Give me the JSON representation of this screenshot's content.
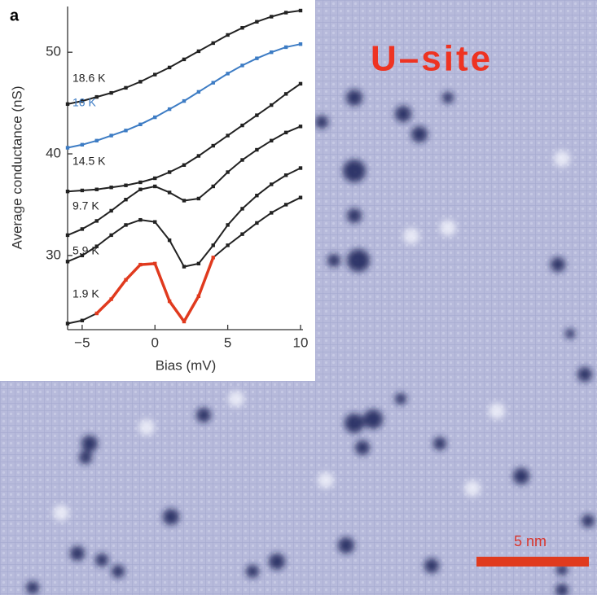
{
  "chart_data": {
    "type": "line",
    "panel_label": "a",
    "annotation": "U–site",
    "scale_bar": "5 nm",
    "xlabel": "Bias (mV)",
    "ylabel": "Average conductance (nS)",
    "x": [
      -6,
      -5,
      -4,
      -3,
      -2,
      -1,
      0,
      1,
      2,
      3,
      4,
      5,
      6,
      7,
      8,
      9,
      10
    ],
    "xlim": [
      -6,
      10
    ],
    "xticks": [
      {
        "value": -5,
        "label": "−5"
      },
      0,
      5,
      10
    ],
    "ylim": [
      22.7,
      54.5
    ],
    "yticks": [
      30,
      40,
      50
    ],
    "series": [
      {
        "name": "18.6 K",
        "color": "#222222",
        "values": [
          44.9,
          45.2,
          45.6,
          46.0,
          46.5,
          47.1,
          47.8,
          48.5,
          49.3,
          50.1,
          50.9,
          51.7,
          52.4,
          53.0,
          53.5,
          53.9,
          54.1
        ]
      },
      {
        "name": "16 K",
        "color": "#3d7cc4",
        "values": [
          40.6,
          40.9,
          41.3,
          41.8,
          42.3,
          42.9,
          43.6,
          44.4,
          45.2,
          46.1,
          47.0,
          47.9,
          48.7,
          49.4,
          50.0,
          50.5,
          50.8
        ]
      },
      {
        "name": "14.5 K",
        "color": "#222222",
        "values": [
          36.3,
          36.4,
          36.5,
          36.7,
          36.9,
          37.2,
          37.6,
          38.2,
          38.9,
          39.8,
          40.8,
          41.8,
          42.8,
          43.8,
          44.8,
          45.9,
          46.9
        ]
      },
      {
        "name": "9.7 K",
        "color": "#222222",
        "values": [
          32.0,
          32.6,
          33.4,
          34.4,
          35.5,
          36.5,
          36.8,
          36.2,
          35.4,
          35.6,
          36.8,
          38.2,
          39.4,
          40.4,
          41.3,
          42.1,
          42.7
        ]
      },
      {
        "name": "5.9 K",
        "color": "#222222",
        "values": [
          29.4,
          30.0,
          30.9,
          32.0,
          33.0,
          33.5,
          33.3,
          31.5,
          28.9,
          29.2,
          31.0,
          33.0,
          34.6,
          35.9,
          37.0,
          37.9,
          38.6
        ]
      },
      {
        "name": "1.9 K",
        "color": "#222222",
        "highlight": {
          "color": "#e03a1e",
          "xlim": [
            -4,
            4
          ]
        },
        "values": [
          23.3,
          23.6,
          24.3,
          25.7,
          27.6,
          29.1,
          29.2,
          25.5,
          23.5,
          26.0,
          29.8,
          31.0,
          32.1,
          33.2,
          34.2,
          35.0,
          35.7
        ]
      }
    ]
  }
}
